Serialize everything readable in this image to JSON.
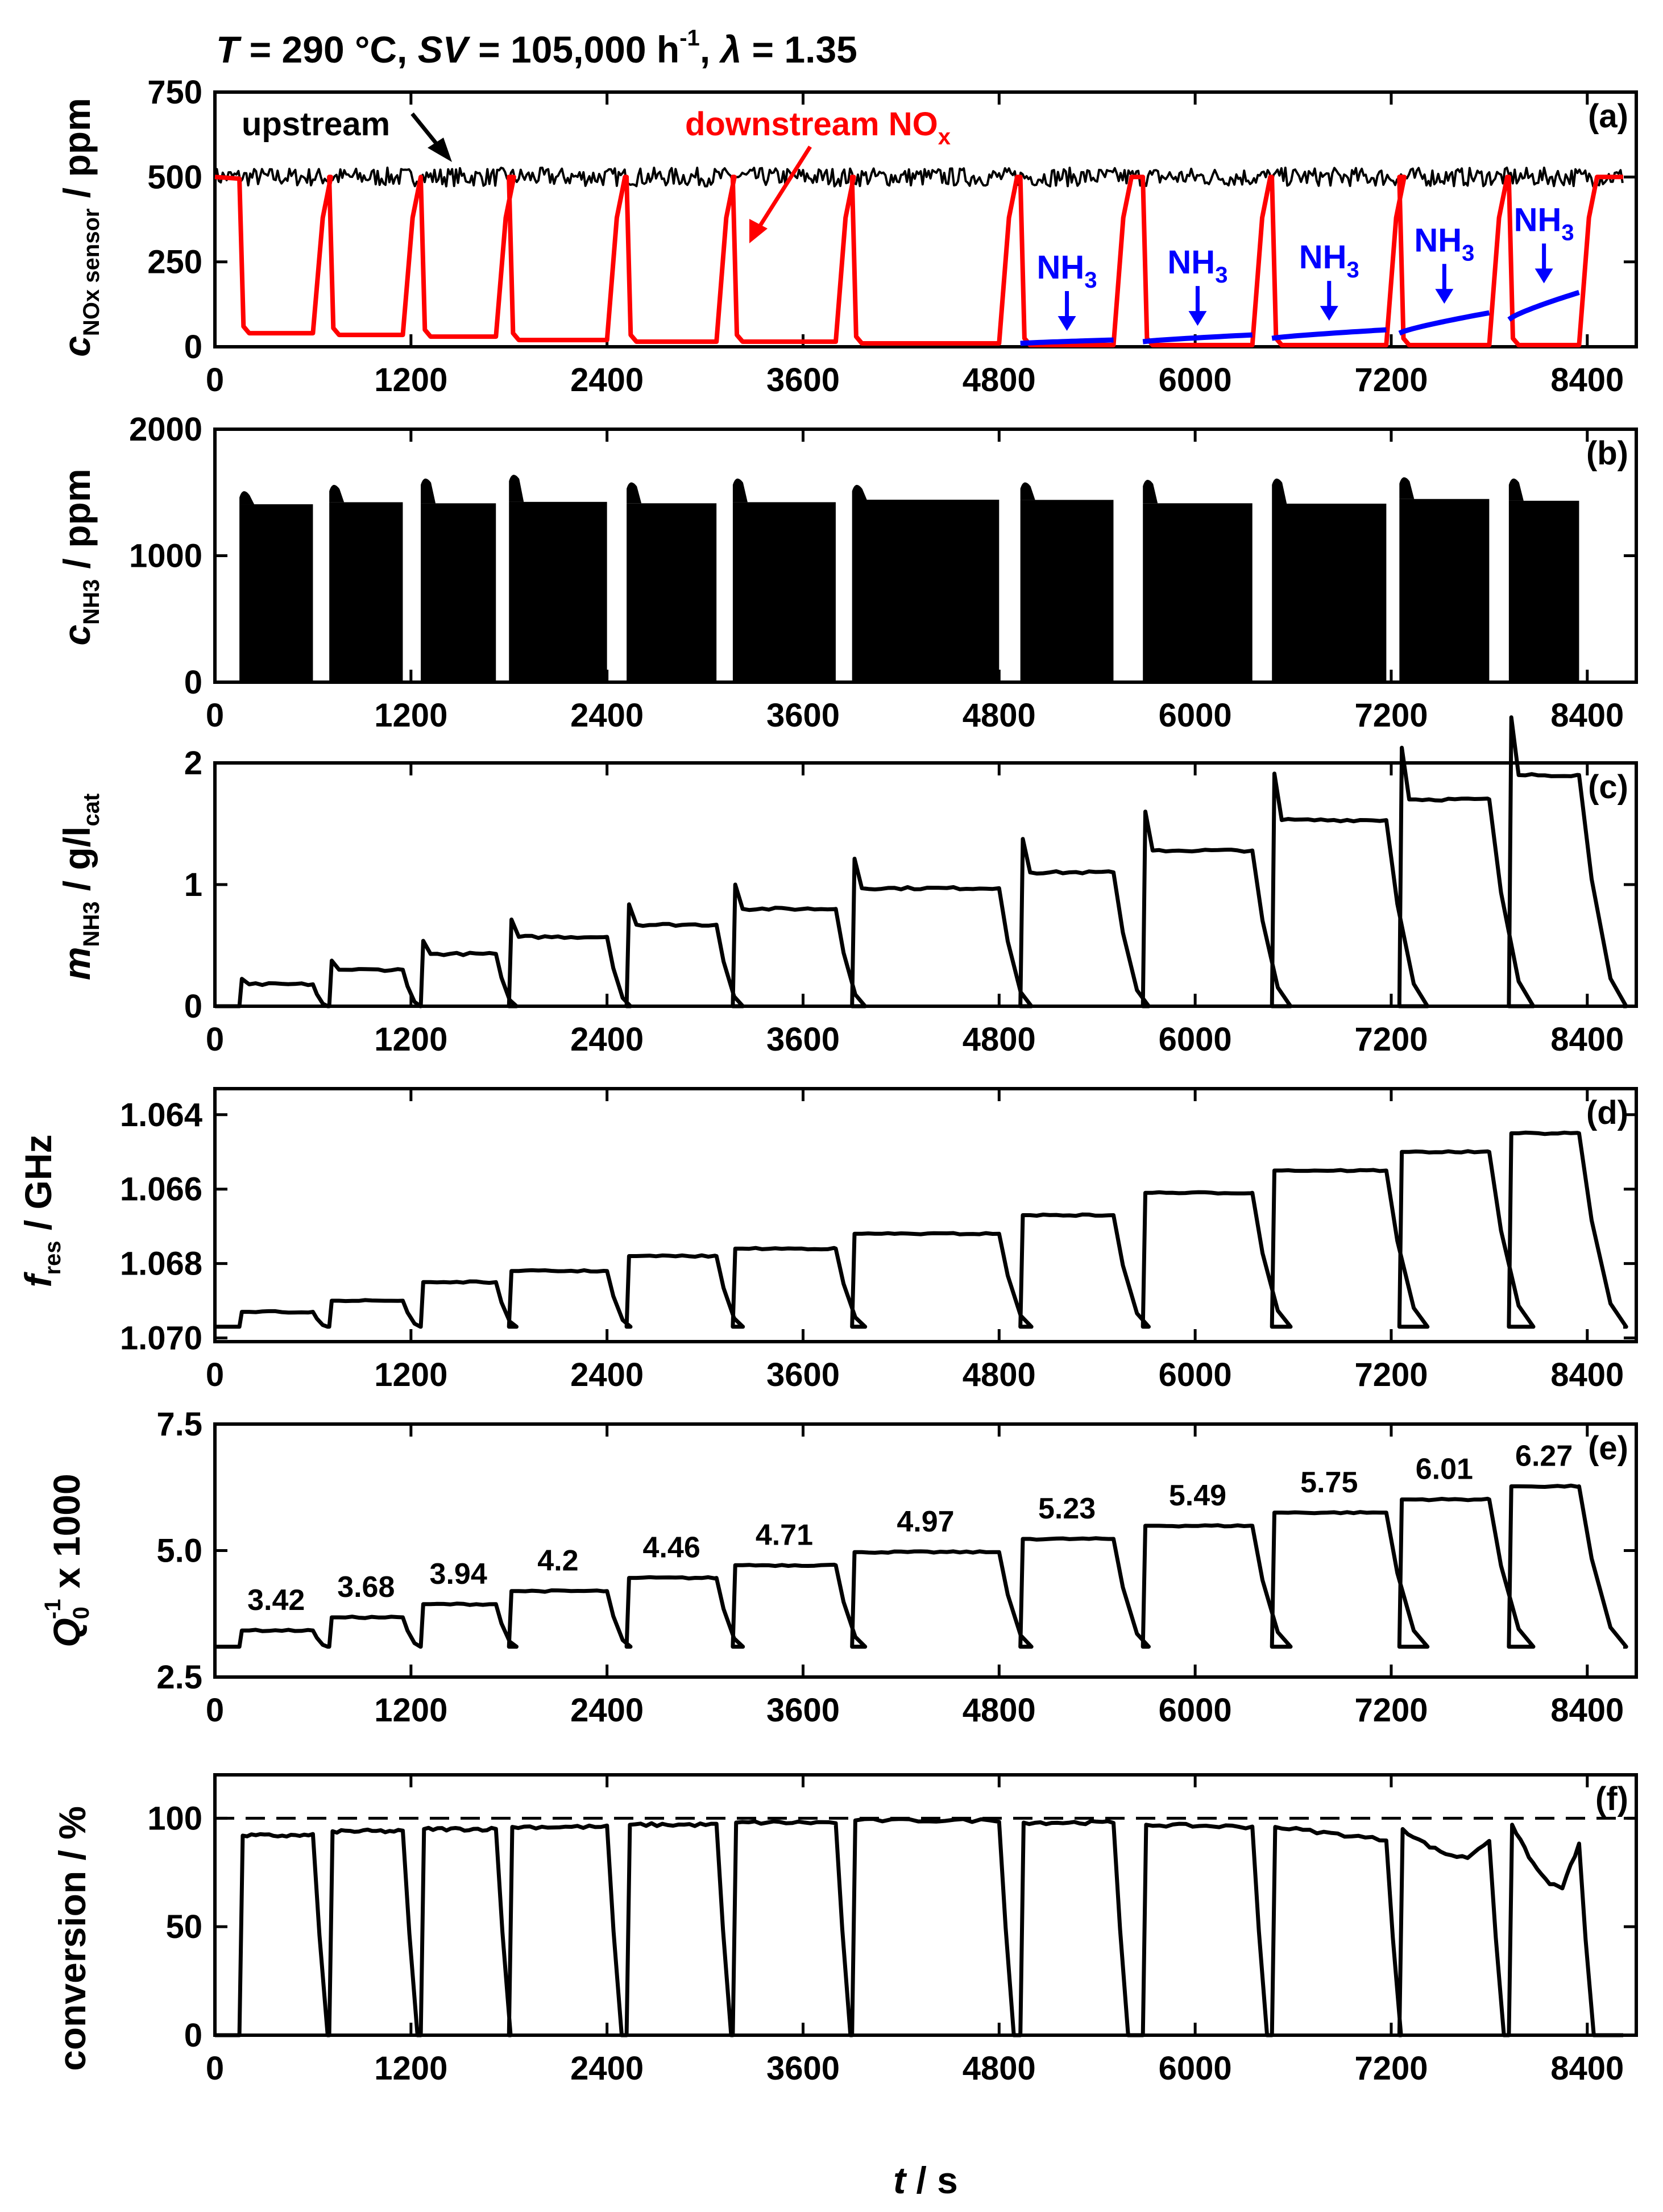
{
  "colors": {
    "black": "#000000",
    "red": "#ff0000",
    "blue": "#0000ff"
  },
  "figure": {
    "title": {
      "T_sym": "T",
      "T_val": " = 290 °C, ",
      "SV_sym": "SV",
      "SV_val": " = 105,000 h",
      "SV_sup": "-1",
      "sep": ", ",
      "lambda_sym": "λ",
      "lambda_val": " = 1.35"
    },
    "xlabel": {
      "sym": "t",
      "unit": " / s"
    }
  },
  "chart_data": [
    {
      "id": "a",
      "panel_label": "(a)",
      "type": "line",
      "ylabel": {
        "sym": "c",
        "sub": "NOx sensor",
        "unit": " / ppm"
      },
      "xlim": [
        0,
        8700
      ],
      "ylim": [
        0,
        750
      ],
      "xticks": [
        "0",
        "1200",
        "2400",
        "3600",
        "4800",
        "6000",
        "7200",
        "8400"
      ],
      "yticks": [
        "0",
        "250",
        "500",
        "750"
      ],
      "annotations": {
        "upstream": "upstream",
        "downstream": "downstream NO",
        "downstream_sub": "x",
        "nh3": "NH",
        "nh3_sub": "3"
      },
      "dosing_on": [
        [
          150,
          600
        ],
        [
          700,
          1150
        ],
        [
          1260,
          1720
        ],
        [
          1800,
          2400
        ],
        [
          2520,
          3070
        ],
        [
          3170,
          3800
        ],
        [
          3900,
          4800
        ],
        [
          4930,
          5500
        ],
        [
          5680,
          6350
        ],
        [
          6470,
          7170
        ],
        [
          7250,
          7800
        ],
        [
          7920,
          8350
        ]
      ],
      "series": [
        {
          "name": "upstream",
          "color": "#000000",
          "baseline": 500
        },
        {
          "name": "downstream NOx",
          "color": "#ff0000",
          "plateaus": [
            40,
            35,
            30,
            20,
            15,
            15,
            10,
            5,
            5,
            5,
            5,
            5
          ]
        },
        {
          "name": "NH3 slip",
          "color": "#0000ff",
          "slip_start": [
            0,
            0,
            0,
            0,
            0,
            0,
            0,
            10,
            15,
            25,
            40,
            80
          ],
          "slip_end": [
            0,
            0,
            0,
            0,
            0,
            0,
            0,
            20,
            35,
            50,
            100,
            160
          ]
        }
      ]
    },
    {
      "id": "b",
      "panel_label": "(b)",
      "type": "area",
      "ylabel": {
        "sym": "c",
        "sub": "NH3",
        "unit": " / ppm"
      },
      "xlim": [
        0,
        8700
      ],
      "ylim": [
        0,
        2000
      ],
      "xticks": [
        "0",
        "1200",
        "2400",
        "3600",
        "4800",
        "6000",
        "7200",
        "8400"
      ],
      "yticks": [
        "0",
        "1000",
        "2000"
      ],
      "dosing_pulses": [
        [
          150,
          600
        ],
        [
          700,
          1150
        ],
        [
          1260,
          1720
        ],
        [
          1800,
          2400
        ],
        [
          2520,
          3070
        ],
        [
          3170,
          3800
        ],
        [
          3900,
          4800
        ],
        [
          4930,
          5500
        ],
        [
          5680,
          6350
        ],
        [
          6470,
          7170
        ],
        [
          7250,
          7800
        ],
        [
          7920,
          8350
        ]
      ],
      "plateau": 1420,
      "peaks": [
        1550,
        1600,
        1650,
        1680,
        1620,
        1650,
        1600,
        1620,
        1640,
        1650,
        1660,
        1650
      ]
    },
    {
      "id": "c",
      "panel_label": "(c)",
      "type": "line",
      "ylabel": {
        "sym": "m",
        "sub": "NH3",
        "unit": " / g/l",
        "unit_sub": "cat"
      },
      "xlim": [
        0,
        8700
      ],
      "ylim": [
        0,
        2
      ],
      "xticks": [
        "0",
        "1200",
        "2400",
        "3600",
        "4800",
        "6000",
        "7200",
        "8400"
      ],
      "yticks": [
        "0",
        "1",
        "2"
      ],
      "plateau_values": [
        0.18,
        0.3,
        0.43,
        0.57,
        0.67,
        0.8,
        0.97,
        1.1,
        1.28,
        1.53,
        1.7,
        1.9
      ]
    },
    {
      "id": "d",
      "panel_label": "(d)",
      "type": "line",
      "ylabel": {
        "sym": "f",
        "sub": "res",
        "unit": " / GHz"
      },
      "xlim": [
        0,
        8700
      ],
      "ylim": [
        1.0701,
        1.0633
      ],
      "inverted": true,
      "xticks": [
        "0",
        "1200",
        "2400",
        "3600",
        "4800",
        "6000",
        "7200",
        "8400"
      ],
      "yticks": [
        "1.064",
        "1.066",
        "1.068",
        "1.070"
      ],
      "baseline": 1.0697,
      "plateau_values": [
        1.0693,
        1.069,
        1.0685,
        1.0682,
        1.0678,
        1.0676,
        1.0672,
        1.0667,
        1.0661,
        1.0655,
        1.065,
        1.0645
      ]
    },
    {
      "id": "e",
      "panel_label": "(e)",
      "type": "line",
      "ylabel": {
        "sym": "Q",
        "sub": "0",
        "sup": "-1",
        "unit": " x 1000"
      },
      "xlim": [
        0,
        8700
      ],
      "ylim": [
        2.5,
        7.5
      ],
      "xticks": [
        "0",
        "1200",
        "2400",
        "3600",
        "4800",
        "6000",
        "7200",
        "8400"
      ],
      "yticks": [
        "2.5",
        "5.0",
        "7.5"
      ],
      "baseline": 3.1,
      "plateau_values": [
        3.42,
        3.68,
        3.94,
        4.2,
        4.46,
        4.71,
        4.97,
        5.23,
        5.49,
        5.75,
        6.01,
        6.27
      ],
      "value_labels": [
        "3.42",
        "3.68",
        "3.94",
        "4.2",
        "4.46",
        "4.71",
        "4.97",
        "5.23",
        "5.49",
        "5.75",
        "6.01",
        "6.27"
      ]
    },
    {
      "id": "f",
      "panel_label": "(f)",
      "type": "line",
      "ylabel": {
        "text": "conversion / %"
      },
      "xlim": [
        0,
        8700
      ],
      "ylim": [
        0,
        120
      ],
      "xticks": [
        "0",
        "1200",
        "2400",
        "3600",
        "4800",
        "6000",
        "7200",
        "8400"
      ],
      "yticks": [
        "0",
        "50",
        "100"
      ],
      "reference_line": 100,
      "conversion_start": [
        92,
        94,
        95,
        96,
        97,
        98,
        99,
        98,
        97,
        96,
        95,
        97
      ],
      "conversion_end": [
        92,
        94,
        95,
        96,
        97,
        98,
        99,
        98,
        96,
        90,
        90,
        88
      ],
      "conversion_min": [
        92,
        94,
        95,
        96,
        97,
        98,
        99,
        98,
        96,
        90,
        82,
        68
      ]
    }
  ]
}
